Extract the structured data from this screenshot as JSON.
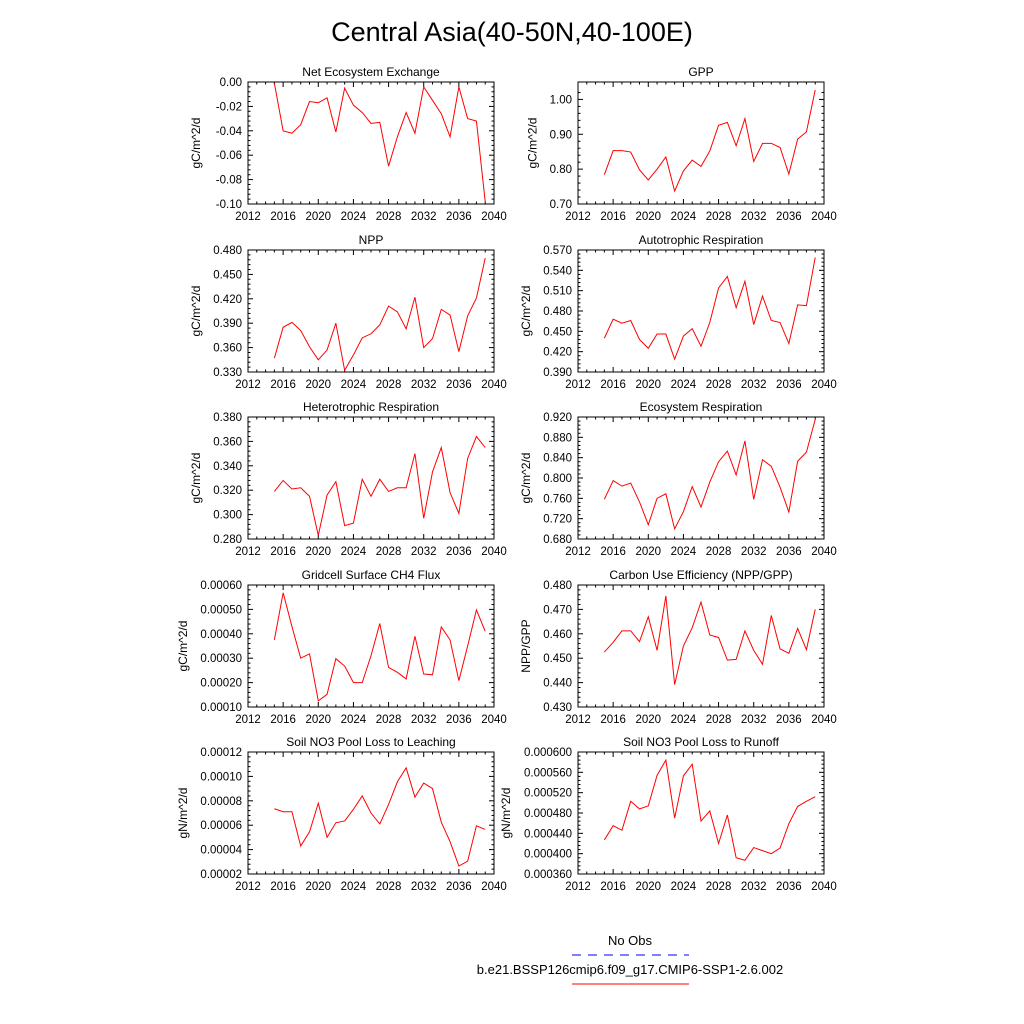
{
  "figure": {
    "title": "Central Asia(40-50N,40-100E)"
  },
  "legend": {
    "entries": [
      {
        "label": "No Obs",
        "color": "#0000ff",
        "style": "dashed"
      },
      {
        "label": "b.e21.BSSP126cmip6.f09_g17.CMIP6-SSP1-2.6.002",
        "color": "#ff0000",
        "style": "solid"
      }
    ]
  },
  "chart_data": [
    {
      "type": "line",
      "title": "Net Ecosystem Exchange",
      "xlabel": "",
      "ylabel": "gC/m^2/d",
      "xlim": [
        2012,
        2040
      ],
      "ylim": [
        -0.1,
        0.0
      ],
      "xticks": [
        "2012",
        "2016",
        "2020",
        "2024",
        "2028",
        "2032",
        "2036",
        "2040"
      ],
      "yticks": [
        "0.00",
        "-0.02",
        "-0.04",
        "-0.06",
        "-0.08",
        "-0.10"
      ],
      "x": [
        2015,
        2016,
        2017,
        2018,
        2019,
        2020,
        2021,
        2022,
        2023,
        2024,
        2025,
        2026,
        2027,
        2028,
        2029,
        2030,
        2031,
        2032,
        2033,
        2034,
        2035,
        2036,
        2037,
        2038,
        2039
      ],
      "series": [
        {
          "color": "#ff0000",
          "values": [
            -0.001,
            -0.04,
            -0.042,
            -0.035,
            -0.016,
            -0.017,
            -0.013,
            -0.041,
            -0.005,
            -0.019,
            -0.025,
            -0.034,
            -0.033,
            -0.069,
            -0.045,
            -0.025,
            -0.042,
            -0.004,
            -0.015,
            -0.026,
            -0.045,
            -0.004,
            -0.03,
            -0.032,
            -0.098
          ]
        }
      ]
    },
    {
      "type": "line",
      "title": "GPP",
      "xlabel": "",
      "ylabel": "gC/m^2/d",
      "xlim": [
        2012,
        2040
      ],
      "ylim": [
        0.7,
        1.05
      ],
      "xticks": [
        "2012",
        "2016",
        "2020",
        "2024",
        "2028",
        "2032",
        "2036",
        "2040"
      ],
      "yticks": [
        "1.00",
        "0.90",
        "0.80",
        "0.70"
      ],
      "x": [
        2015,
        2016,
        2017,
        2018,
        2019,
        2020,
        2021,
        2022,
        2023,
        2024,
        2025,
        2026,
        2027,
        2028,
        2029,
        2030,
        2031,
        2032,
        2033,
        2034,
        2035,
        2036,
        2037,
        2038,
        2039
      ],
      "series": [
        {
          "color": "#ff0000",
          "values": [
            0.784,
            0.853,
            0.853,
            0.849,
            0.798,
            0.769,
            0.8,
            0.835,
            0.737,
            0.795,
            0.826,
            0.808,
            0.852,
            0.926,
            0.934,
            0.867,
            0.945,
            0.822,
            0.874,
            0.874,
            0.862,
            0.786,
            0.886,
            0.907,
            1.027
          ]
        }
      ]
    },
    {
      "type": "line",
      "title": "NPP",
      "xlabel": "",
      "ylabel": "gC/m^2/d",
      "xlim": [
        2012,
        2040
      ],
      "ylim": [
        0.33,
        0.48
      ],
      "xticks": [
        "2012",
        "2016",
        "2020",
        "2024",
        "2028",
        "2032",
        "2036",
        "2040"
      ],
      "yticks": [
        "0.480",
        "0.450",
        "0.420",
        "0.390",
        "0.360",
        "0.330"
      ],
      "x": [
        2015,
        2016,
        2017,
        2018,
        2019,
        2020,
        2021,
        2022,
        2023,
        2024,
        2025,
        2026,
        2027,
        2028,
        2029,
        2030,
        2031,
        2032,
        2033,
        2034,
        2035,
        2036,
        2037,
        2038,
        2039
      ],
      "series": [
        {
          "color": "#ff0000",
          "values": [
            0.347,
            0.385,
            0.391,
            0.381,
            0.361,
            0.345,
            0.357,
            0.39,
            0.332,
            0.351,
            0.372,
            0.377,
            0.388,
            0.411,
            0.404,
            0.383,
            0.422,
            0.36,
            0.371,
            0.407,
            0.4,
            0.355,
            0.399,
            0.421,
            0.47
          ]
        }
      ]
    },
    {
      "type": "line",
      "title": "Autotrophic Respiration",
      "xlabel": "",
      "ylabel": "gC/m^2/d",
      "xlim": [
        2012,
        2040
      ],
      "ylim": [
        0.39,
        0.57
      ],
      "xticks": [
        "2012",
        "2016",
        "2020",
        "2024",
        "2028",
        "2032",
        "2036",
        "2040"
      ],
      "yticks": [
        "0.570",
        "0.540",
        "0.510",
        "0.480",
        "0.450",
        "0.420",
        "0.390"
      ],
      "x": [
        2015,
        2016,
        2017,
        2018,
        2019,
        2020,
        2021,
        2022,
        2023,
        2024,
        2025,
        2026,
        2027,
        2028,
        2029,
        2030,
        2031,
        2032,
        2033,
        2034,
        2035,
        2036,
        2037,
        2038,
        2039
      ],
      "series": [
        {
          "color": "#ff0000",
          "values": [
            0.44,
            0.468,
            0.462,
            0.466,
            0.438,
            0.425,
            0.446,
            0.446,
            0.409,
            0.443,
            0.454,
            0.428,
            0.463,
            0.514,
            0.531,
            0.485,
            0.524,
            0.46,
            0.502,
            0.466,
            0.463,
            0.432,
            0.489,
            0.488,
            0.559
          ]
        }
      ]
    },
    {
      "type": "line",
      "title": "Heterotrophic Respiration",
      "xlabel": "",
      "ylabel": "gC/m^2/d",
      "xlim": [
        2012,
        2040
      ],
      "ylim": [
        0.28,
        0.38
      ],
      "xticks": [
        "2012",
        "2016",
        "2020",
        "2024",
        "2028",
        "2032",
        "2036",
        "2040"
      ],
      "yticks": [
        "0.380",
        "0.360",
        "0.340",
        "0.320",
        "0.300",
        "0.280"
      ],
      "x": [
        2015,
        2016,
        2017,
        2018,
        2019,
        2020,
        2021,
        2022,
        2023,
        2024,
        2025,
        2026,
        2027,
        2028,
        2029,
        2030,
        2031,
        2032,
        2033,
        2034,
        2035,
        2036,
        2037,
        2038,
        2039
      ],
      "series": [
        {
          "color": "#ff0000",
          "values": [
            0.319,
            0.328,
            0.321,
            0.322,
            0.315,
            0.283,
            0.316,
            0.327,
            0.291,
            0.293,
            0.329,
            0.315,
            0.329,
            0.319,
            0.322,
            0.322,
            0.35,
            0.297,
            0.335,
            0.355,
            0.318,
            0.301,
            0.346,
            0.364,
            0.355
          ]
        }
      ]
    },
    {
      "type": "line",
      "title": "Ecosystem Respiration",
      "xlabel": "",
      "ylabel": "gC/m^2/d",
      "xlim": [
        2012,
        2040
      ],
      "ylim": [
        0.68,
        0.92
      ],
      "xticks": [
        "2012",
        "2016",
        "2020",
        "2024",
        "2028",
        "2032",
        "2036",
        "2040"
      ],
      "yticks": [
        "0.920",
        "0.880",
        "0.840",
        "0.800",
        "0.760",
        "0.720",
        "0.680"
      ],
      "x": [
        2015,
        2016,
        2017,
        2018,
        2019,
        2020,
        2021,
        2022,
        2023,
        2024,
        2025,
        2026,
        2027,
        2028,
        2029,
        2030,
        2031,
        2032,
        2033,
        2034,
        2035,
        2036,
        2037,
        2038,
        2039
      ],
      "series": [
        {
          "color": "#ff0000",
          "values": [
            0.758,
            0.795,
            0.784,
            0.79,
            0.753,
            0.708,
            0.76,
            0.769,
            0.7,
            0.734,
            0.783,
            0.743,
            0.792,
            0.832,
            0.853,
            0.806,
            0.873,
            0.758,
            0.836,
            0.823,
            0.782,
            0.733,
            0.833,
            0.851,
            0.915
          ]
        }
      ]
    },
    {
      "type": "line",
      "title": "Gridcell Surface CH4 Flux",
      "xlabel": "",
      "ylabel": "gC/m^2/d",
      "xlim": [
        2012,
        2040
      ],
      "ylim": [
        0.0001,
        0.0006
      ],
      "xticks": [
        "2012",
        "2016",
        "2020",
        "2024",
        "2028",
        "2032",
        "2036",
        "2040"
      ],
      "yticks": [
        "0.00060",
        "0.00050",
        "0.00040",
        "0.00030",
        "0.00020",
        "0.00010"
      ],
      "x": [
        2015,
        2016,
        2017,
        2018,
        2019,
        2020,
        2021,
        2022,
        2023,
        2024,
        2025,
        2026,
        2027,
        2028,
        2029,
        2030,
        2031,
        2032,
        2033,
        2034,
        2035,
        2036,
        2037,
        2038,
        2039
      ],
      "series": [
        {
          "color": "#ff0000",
          "values": [
            0.000375,
            0.000568,
            0.00043,
            0.0003,
            0.000318,
            0.000125,
            0.000152,
            0.000298,
            0.000268,
            0.0002,
            0.0002,
            0.00031,
            0.000442,
            0.000262,
            0.000242,
            0.000215,
            0.00039,
            0.000235,
            0.000232,
            0.000428,
            0.000375,
            0.000208,
            0.00035,
            0.000498,
            0.00041
          ]
        }
      ]
    },
    {
      "type": "line",
      "title": "Carbon Use Efficiency (NPP/GPP)",
      "xlabel": "",
      "ylabel": "NPP/GPP",
      "xlim": [
        2012,
        2040
      ],
      "ylim": [
        0.43,
        0.48
      ],
      "xticks": [
        "2012",
        "2016",
        "2020",
        "2024",
        "2028",
        "2032",
        "2036",
        "2040"
      ],
      "yticks": [
        "0.480",
        "0.470",
        "0.460",
        "0.450",
        "0.440",
        "0.430"
      ],
      "x": [
        2015,
        2016,
        2017,
        2018,
        2019,
        2020,
        2021,
        2022,
        2023,
        2024,
        2025,
        2026,
        2027,
        2028,
        2029,
        2030,
        2031,
        2032,
        2033,
        2034,
        2035,
        2036,
        2037,
        2038,
        2039
      ],
      "series": [
        {
          "color": "#ff0000",
          "values": [
            0.4525,
            0.4565,
            0.4612,
            0.4612,
            0.4568,
            0.467,
            0.4532,
            0.4755,
            0.4392,
            0.455,
            0.4625,
            0.473,
            0.4595,
            0.4585,
            0.4492,
            0.4495,
            0.4612,
            0.4532,
            0.4475,
            0.4675,
            0.4538,
            0.452,
            0.4622,
            0.4535,
            0.47
          ]
        }
      ]
    },
    {
      "type": "line",
      "title": "Soil NO3 Pool Loss to Leaching",
      "xlabel": "",
      "ylabel": "gN/m^2/d",
      "xlim": [
        2012,
        2040
      ],
      "ylim": [
        2e-05,
        0.00012
      ],
      "xticks": [
        "2012",
        "2016",
        "2020",
        "2024",
        "2028",
        "2032",
        "2036",
        "2040"
      ],
      "yticks": [
        "0.00012",
        "0.00010",
        "0.00008",
        "0.00006",
        "0.00004",
        "0.00002"
      ],
      "x": [
        2015,
        2016,
        2017,
        2018,
        2019,
        2020,
        2021,
        2022,
        2023,
        2024,
        2025,
        2026,
        2027,
        2028,
        2029,
        2030,
        2031,
        2032,
        2033,
        2034,
        2035,
        2036,
        2037,
        2038,
        2039
      ],
      "series": [
        {
          "color": "#ff0000",
          "values": [
            7.35e-05,
            7.1e-05,
            7.1e-05,
            4.3e-05,
            5.45e-05,
            7.8e-05,
            5e-05,
            6.2e-05,
            6.35e-05,
            7.3e-05,
            8.4e-05,
            7e-05,
            6.1e-05,
            7.7e-05,
            9.55e-05,
            0.000107,
            8.3e-05,
            9.45e-05,
            9e-05,
            6.25e-05,
            4.65e-05,
            2.65e-05,
            3.05e-05,
            5.95e-05,
            5.65e-05
          ]
        }
      ]
    },
    {
      "type": "line",
      "title": "Soil NO3 Pool Loss to Runoff",
      "xlabel": "",
      "ylabel": "gN/m^2/d",
      "xlim": [
        2012,
        2040
      ],
      "ylim": [
        0.00036,
        0.0006
      ],
      "xticks": [
        "2012",
        "2016",
        "2020",
        "2024",
        "2028",
        "2032",
        "2036",
        "2040"
      ],
      "yticks": [
        "0.000600",
        "0.000560",
        "0.000520",
        "0.000480",
        "0.000440",
        "0.000400",
        "0.000360"
      ],
      "x": [
        2015,
        2016,
        2017,
        2018,
        2019,
        2020,
        2021,
        2022,
        2023,
        2024,
        2025,
        2026,
        2027,
        2028,
        2029,
        2030,
        2031,
        2032,
        2033,
        2034,
        2035,
        2036,
        2037,
        2038,
        2039
      ],
      "series": [
        {
          "color": "#ff0000",
          "values": [
            0.000427,
            0.000455,
            0.000446,
            0.000503,
            0.000488,
            0.000494,
            0.000554,
            0.000584,
            0.00047,
            0.000553,
            0.000576,
            0.000464,
            0.000484,
            0.00042,
            0.000476,
            0.000392,
            0.000387,
            0.000412,
            0.000406,
            0.0004,
            0.000411,
            0.000459,
            0.000493,
            0.000503,
            0.000512
          ]
        }
      ]
    }
  ]
}
